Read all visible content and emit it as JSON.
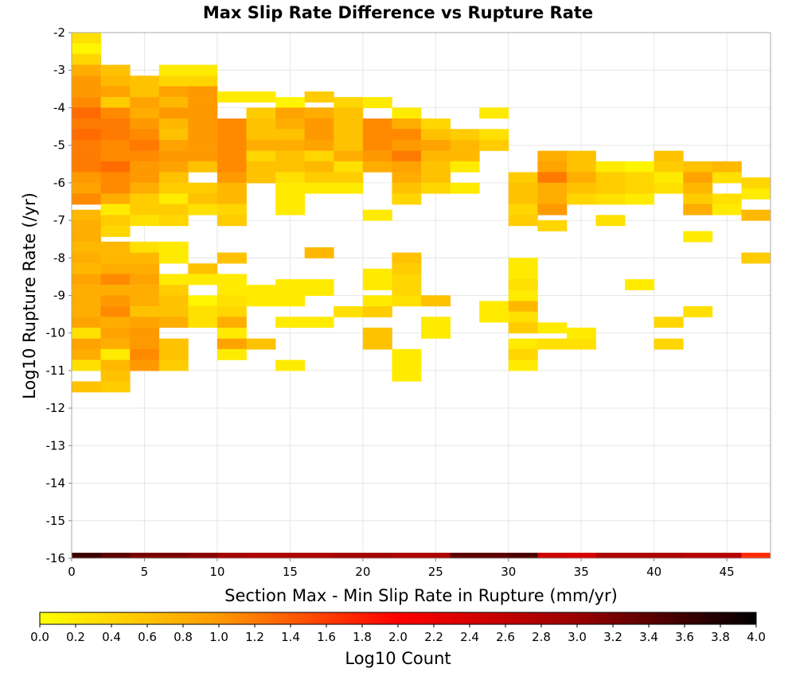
{
  "chart_data": {
    "type": "heatmap",
    "title": "Max Slip Rate Difference vs Rupture Rate",
    "xlabel": "Section Max - Min Slip Rate in Rupture (mm/yr)",
    "ylabel": "Log10 Rupture Rate (/yr)",
    "xlim": [
      0,
      48
    ],
    "ylim": [
      -16,
      -2
    ],
    "x_ticks": [
      "0",
      "5",
      "10",
      "15",
      "20",
      "25",
      "30",
      "35",
      "40",
      "45"
    ],
    "y_ticks": [
      "-2",
      "-3",
      "-4",
      "-5",
      "-6",
      "-7",
      "-8",
      "-9",
      "-10",
      "-11",
      "-12",
      "-13",
      "-14",
      "-15",
      "-16"
    ],
    "bin_width_x": 2,
    "bin_height_y": 0.2857,
    "grid": true,
    "colorbar": {
      "label": "Log10 Count",
      "range": [
        0,
        4
      ],
      "ticks": [
        "0.0",
        "0.2",
        "0.4",
        "0.6",
        "0.8",
        "1.0",
        "1.2",
        "1.4",
        "1.6",
        "1.8",
        "2.0",
        "2.2",
        "2.4",
        "2.6",
        "2.8",
        "3.0",
        "3.2",
        "3.4",
        "3.6",
        "3.8",
        "4.0"
      ],
      "colors": [
        "#ffff00",
        "#ff9900",
        "#ff0000",
        "#990000",
        "#000000"
      ]
    },
    "cells": {
      "0": [
        [
          -2.14,
          0.3
        ],
        [
          -2.43,
          0.1
        ],
        [
          -2.71,
          0.4
        ],
        [
          -3.0,
          0.8
        ],
        [
          -3.29,
          1.0
        ],
        [
          -3.57,
          1.0
        ],
        [
          -3.86,
          1.1
        ],
        [
          -4.14,
          1.3
        ],
        [
          -4.43,
          1.2
        ],
        [
          -4.71,
          1.3
        ],
        [
          -5.0,
          1.2
        ],
        [
          -5.29,
          1.2
        ],
        [
          -5.57,
          1.2
        ],
        [
          -5.86,
          1.0
        ],
        [
          -6.14,
          0.9
        ],
        [
          -6.43,
          1.1
        ],
        [
          -6.86,
          0.7
        ],
        [
          -7.14,
          0.8
        ],
        [
          -7.43,
          0.8
        ],
        [
          -7.71,
          0.7
        ],
        [
          -8.0,
          0.8
        ],
        [
          -8.29,
          0.7
        ],
        [
          -8.57,
          0.9
        ],
        [
          -8.86,
          0.8
        ],
        [
          -9.14,
          0.8
        ],
        [
          -9.43,
          0.8
        ],
        [
          -9.71,
          0.9
        ],
        [
          -10.0,
          0.3
        ],
        [
          -10.29,
          0.9
        ],
        [
          -10.57,
          0.8
        ],
        [
          -10.86,
          0.3
        ],
        [
          -11.43,
          0.6
        ]
      ],
      "2": [
        [
          -3.0,
          0.6
        ],
        [
          -3.29,
          0.7
        ],
        [
          -3.57,
          0.9
        ],
        [
          -3.86,
          0.5
        ],
        [
          -4.14,
          1.1
        ],
        [
          -4.43,
          1.2
        ],
        [
          -4.71,
          1.2
        ],
        [
          -5.0,
          1.1
        ],
        [
          -5.29,
          1.1
        ],
        [
          -5.57,
          1.3
        ],
        [
          -5.86,
          1.1
        ],
        [
          -6.14,
          1.1
        ],
        [
          -6.43,
          0.8
        ],
        [
          -6.71,
          0.2
        ],
        [
          -7.0,
          0.5
        ],
        [
          -7.29,
          0.4
        ],
        [
          -7.71,
          0.7
        ],
        [
          -8.0,
          0.7
        ],
        [
          -8.29,
          0.8
        ],
        [
          -8.57,
          1.1
        ],
        [
          -8.86,
          0.8
        ],
        [
          -9.14,
          1.0
        ],
        [
          -9.43,
          1.1
        ],
        [
          -9.71,
          0.8
        ],
        [
          -10.0,
          0.9
        ],
        [
          -10.29,
          0.8
        ],
        [
          -10.57,
          0.2
        ],
        [
          -10.86,
          0.7
        ],
        [
          -11.14,
          0.6
        ],
        [
          -11.43,
          0.5
        ]
      ],
      "4": [
        [
          -3.29,
          0.6
        ],
        [
          -3.57,
          0.6
        ],
        [
          -3.86,
          0.9
        ],
        [
          -4.14,
          0.8
        ],
        [
          -4.43,
          1.0
        ],
        [
          -4.71,
          1.1
        ],
        [
          -5.0,
          1.2
        ],
        [
          -5.29,
          1.1
        ],
        [
          -5.57,
          1.0
        ],
        [
          -5.86,
          1.0
        ],
        [
          -6.14,
          0.8
        ],
        [
          -6.43,
          0.5
        ],
        [
          -6.71,
          0.5
        ],
        [
          -7.0,
          0.3
        ],
        [
          -7.71,
          0.3
        ],
        [
          -8.0,
          0.7
        ],
        [
          -8.29,
          0.8
        ],
        [
          -8.57,
          0.9
        ],
        [
          -8.86,
          0.8
        ],
        [
          -9.14,
          0.8
        ],
        [
          -9.43,
          0.6
        ],
        [
          -9.71,
          0.9
        ],
        [
          -10.0,
          1.0
        ],
        [
          -10.29,
          1.0
        ],
        [
          -10.57,
          1.1
        ],
        [
          -10.86,
          1.0
        ]
      ],
      "6": [
        [
          -3.0,
          0.2
        ],
        [
          -3.29,
          0.4
        ],
        [
          -3.57,
          0.9
        ],
        [
          -3.86,
          0.7
        ],
        [
          -4.14,
          1.0
        ],
        [
          -4.43,
          0.7
        ],
        [
          -4.71,
          0.6
        ],
        [
          -5.0,
          0.9
        ],
        [
          -5.29,
          1.0
        ],
        [
          -5.57,
          0.9
        ],
        [
          -5.86,
          0.6
        ],
        [
          -6.14,
          0.5
        ],
        [
          -6.43,
          0.2
        ],
        [
          -6.71,
          0.5
        ],
        [
          -7.0,
          0.4
        ],
        [
          -7.71,
          0.2
        ],
        [
          -8.0,
          0.2
        ],
        [
          -8.57,
          0.2
        ],
        [
          -8.86,
          0.5
        ],
        [
          -9.14,
          0.6
        ],
        [
          -9.43,
          0.6
        ],
        [
          -9.71,
          0.8
        ],
        [
          -10.29,
          0.6
        ],
        [
          -10.57,
          0.6
        ],
        [
          -10.86,
          0.5
        ]
      ],
      "8": [
        [
          -3.0,
          0.2
        ],
        [
          -3.29,
          0.4
        ],
        [
          -3.57,
          1.0
        ],
        [
          -3.86,
          1.0
        ],
        [
          -4.14,
          1.0
        ],
        [
          -4.43,
          1.0
        ],
        [
          -4.71,
          1.0
        ],
        [
          -5.0,
          1.0
        ],
        [
          -5.29,
          1.0
        ],
        [
          -5.57,
          0.6
        ],
        [
          -6.14,
          0.5
        ],
        [
          -6.43,
          0.6
        ],
        [
          -6.71,
          0.3
        ],
        [
          -8.29,
          0.6
        ],
        [
          -8.57,
          0.2
        ],
        [
          -9.14,
          0.1
        ],
        [
          -9.43,
          0.3
        ],
        [
          -9.71,
          0.3
        ]
      ],
      "10": [
        [
          -3.71,
          0.2
        ],
        [
          -4.43,
          1.1
        ],
        [
          -4.71,
          1.1
        ],
        [
          -5.0,
          1.1
        ],
        [
          -5.29,
          1.1
        ],
        [
          -5.57,
          1.1
        ],
        [
          -5.86,
          1.0
        ],
        [
          -6.14,
          0.7
        ],
        [
          -6.43,
          0.7
        ],
        [
          -6.71,
          0.4
        ],
        [
          -7.0,
          0.5
        ],
        [
          -8.0,
          0.6
        ],
        [
          -8.57,
          0.2
        ],
        [
          -8.86,
          0.2
        ],
        [
          -9.14,
          0.3
        ],
        [
          -9.43,
          0.4
        ],
        [
          -9.71,
          0.8
        ],
        [
          -10.0,
          0.2
        ],
        [
          -10.29,
          0.9
        ],
        [
          -10.57,
          0.2
        ]
      ],
      "12": [
        [
          -3.71,
          0.2
        ],
        [
          -4.14,
          0.5
        ],
        [
          -4.43,
          0.6
        ],
        [
          -4.71,
          0.6
        ],
        [
          -5.0,
          0.8
        ],
        [
          -5.29,
          0.4
        ],
        [
          -5.57,
          0.6
        ],
        [
          -5.86,
          0.6
        ],
        [
          -8.86,
          0.2
        ],
        [
          -9.14,
          0.2
        ],
        [
          -10.29,
          0.6
        ]
      ],
      "14": [
        [
          -3.86,
          0.1
        ],
        [
          -4.14,
          0.9
        ],
        [
          -4.43,
          0.8
        ],
        [
          -4.71,
          0.6
        ],
        [
          -5.0,
          0.8
        ],
        [
          -5.29,
          0.6
        ],
        [
          -5.57,
          0.6
        ],
        [
          -5.86,
          0.3
        ],
        [
          -6.14,
          0.2
        ],
        [
          -6.43,
          0.2
        ],
        [
          -6.71,
          0.2
        ],
        [
          -8.71,
          0.2
        ],
        [
          -8.86,
          0.2
        ],
        [
          -9.14,
          0.2
        ],
        [
          -9.71,
          0.2
        ],
        [
          -10.86,
          0.2
        ]
      ],
      "16": [
        [
          -3.71,
          0.5
        ],
        [
          -4.14,
          0.8
        ],
        [
          -4.43,
          1.0
        ],
        [
          -4.71,
          1.0
        ],
        [
          -5.0,
          0.9
        ],
        [
          -5.29,
          0.4
        ],
        [
          -5.57,
          0.7
        ],
        [
          -5.86,
          0.5
        ],
        [
          -6.14,
          0.2
        ],
        [
          -7.86,
          0.7
        ],
        [
          -8.71,
          0.2
        ],
        [
          -8.86,
          0.2
        ],
        [
          -9.71,
          0.2
        ]
      ],
      "18": [
        [
          -3.86,
          0.4
        ],
        [
          -4.14,
          0.6
        ],
        [
          -4.43,
          0.6
        ],
        [
          -4.71,
          0.6
        ],
        [
          -5.0,
          0.6
        ],
        [
          -5.29,
          0.8
        ],
        [
          -5.57,
          0.3
        ],
        [
          -5.86,
          0.5
        ],
        [
          -6.14,
          0.2
        ],
        [
          -9.43,
          0.3
        ]
      ],
      "20": [
        [
          -3.86,
          0.2
        ],
        [
          -4.43,
          1.1
        ],
        [
          -4.71,
          1.1
        ],
        [
          -5.0,
          1.1
        ],
        [
          -5.29,
          1.0
        ],
        [
          -5.57,
          0.8
        ],
        [
          -6.86,
          0.2
        ],
        [
          -8.43,
          0.2
        ],
        [
          -8.71,
          0.2
        ],
        [
          -9.14,
          0.2
        ],
        [
          -9.43,
          0.5
        ],
        [
          -10.0,
          0.6
        ],
        [
          -10.29,
          0.6
        ]
      ],
      "22": [
        [
          -4.14,
          0.2
        ],
        [
          -4.43,
          0.8
        ],
        [
          -4.71,
          1.1
        ],
        [
          -5.0,
          1.0
        ],
        [
          -5.29,
          1.2
        ],
        [
          -5.57,
          0.9
        ],
        [
          -5.86,
          0.8
        ],
        [
          -6.14,
          0.6
        ],
        [
          -6.43,
          0.4
        ],
        [
          -8.0,
          0.6
        ],
        [
          -8.29,
          0.5
        ],
        [
          -8.57,
          0.4
        ],
        [
          -8.86,
          0.4
        ],
        [
          -9.14,
          0.3
        ],
        [
          -10.57,
          0.2
        ],
        [
          -10.86,
          0.2
        ],
        [
          -11.14,
          0.2
        ]
      ],
      "24": [
        [
          -4.43,
          0.4
        ],
        [
          -4.71,
          0.6
        ],
        [
          -5.0,
          0.9
        ],
        [
          -5.29,
          0.7
        ],
        [
          -5.57,
          0.6
        ],
        [
          -5.86,
          0.6
        ],
        [
          -6.14,
          0.4
        ],
        [
          -9.14,
          0.6
        ],
        [
          -9.71,
          0.2
        ],
        [
          -10.0,
          0.2
        ]
      ],
      "26": [
        [
          -4.71,
          0.5
        ],
        [
          -5.0,
          0.7
        ],
        [
          -5.29,
          0.7
        ],
        [
          -5.57,
          0.2
        ],
        [
          -6.14,
          0.2
        ]
      ],
      "28": [
        [
          -4.14,
          0.2
        ],
        [
          -4.71,
          0.3
        ],
        [
          -5.0,
          0.5
        ],
        [
          -9.29,
          0.2
        ],
        [
          -9.57,
          0.2
        ]
      ],
      "30": [
        [
          -5.86,
          0.5
        ],
        [
          -6.14,
          0.6
        ],
        [
          -6.43,
          0.6
        ],
        [
          -6.71,
          0.4
        ],
        [
          -7.0,
          0.5
        ],
        [
          -8.14,
          0.2
        ],
        [
          -8.43,
          0.2
        ],
        [
          -8.71,
          0.3
        ],
        [
          -9.0,
          0.2
        ],
        [
          -9.29,
          0.7
        ],
        [
          -9.57,
          0.3
        ],
        [
          -9.86,
          0.5
        ],
        [
          -10.29,
          0.2
        ],
        [
          -10.57,
          0.4
        ],
        [
          -10.86,
          0.2
        ]
      ],
      "32": [
        [
          -5.29,
          0.8
        ],
        [
          -5.57,
          0.9
        ],
        [
          -5.86,
          1.2
        ],
        [
          -6.14,
          0.8
        ],
        [
          -6.43,
          0.8
        ],
        [
          -6.71,
          1.0
        ],
        [
          -7.14,
          0.4
        ],
        [
          -9.86,
          0.2
        ],
        [
          -10.29,
          0.3
        ]
      ],
      "34": [
        [
          -5.29,
          0.6
        ],
        [
          -5.57,
          0.6
        ],
        [
          -5.86,
          0.8
        ],
        [
          -6.14,
          0.6
        ],
        [
          -6.43,
          0.4
        ],
        [
          -10.0,
          0.2
        ],
        [
          -10.29,
          0.3
        ]
      ],
      "36": [
        [
          -5.57,
          0.2
        ],
        [
          -5.86,
          0.5
        ],
        [
          -6.14,
          0.5
        ],
        [
          -6.43,
          0.3
        ],
        [
          -7.0,
          0.3
        ]
      ],
      "38": [
        [
          -5.57,
          0.1
        ],
        [
          -5.86,
          0.4
        ],
        [
          -6.14,
          0.4
        ],
        [
          -6.43,
          0.2
        ],
        [
          -8.71,
          0.2
        ]
      ],
      "40": [
        [
          -5.29,
          0.6
        ],
        [
          -5.57,
          0.5
        ],
        [
          -5.86,
          0.2
        ],
        [
          -6.14,
          0.3
        ],
        [
          -9.71,
          0.4
        ],
        [
          -10.29,
          0.4
        ]
      ],
      "42": [
        [
          -5.57,
          0.6
        ],
        [
          -5.86,
          0.9
        ],
        [
          -6.14,
          0.7
        ],
        [
          -6.43,
          0.5
        ],
        [
          -6.71,
          0.8
        ],
        [
          -7.43,
          0.2
        ],
        [
          -9.43,
          0.3
        ]
      ],
      "44": [
        [
          -5.57,
          0.7
        ],
        [
          -5.86,
          0.3
        ],
        [
          -6.43,
          0.3
        ],
        [
          -6.71,
          0.2
        ]
      ],
      "46": [
        [
          -6.0,
          0.4
        ],
        [
          -6.29,
          0.2
        ],
        [
          -6.86,
          0.7
        ],
        [
          -8.0,
          0.5
        ]
      ]
    },
    "bottom_row": {
      "y": -16,
      "values": [
        3.6,
        3.4,
        3.2,
        3.2,
        3.1,
        2.9,
        2.8,
        2.8,
        2.8,
        2.9,
        2.9,
        2.8,
        2.8,
        3.4,
        3.4,
        3.5,
        2.5,
        2.4,
        2.8,
        2.8,
        2.8,
        2.7,
        2.7,
        1.7
      ]
    }
  }
}
